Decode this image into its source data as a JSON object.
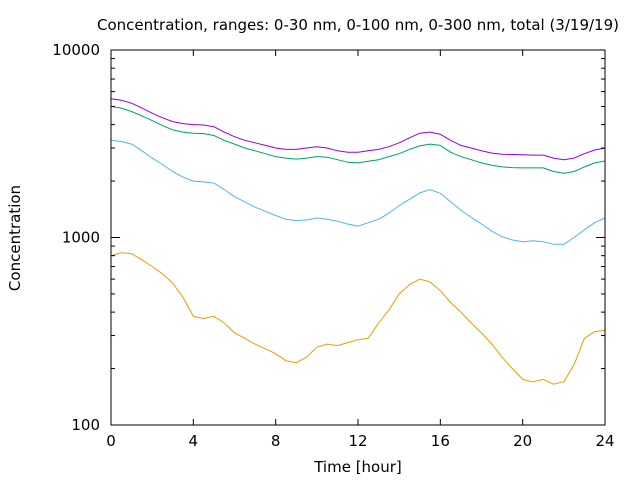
{
  "chart_data": {
    "type": "line",
    "title": "Concentration, ranges: 0-30 nm, 0-100 nm, 0-300 nm, total (3/19/19)",
    "xlabel": "Time [hour]",
    "ylabel": "Concentration",
    "xlim": [
      0,
      24
    ],
    "ylim": [
      100,
      10000
    ],
    "yscale": "log",
    "xticks": [
      "0",
      "4",
      "8",
      "12",
      "16",
      "20",
      "24"
    ],
    "xtick_values": [
      0,
      4,
      8,
      12,
      16,
      20,
      24
    ],
    "yticks": [
      "100",
      "1000",
      "10000"
    ],
    "ytick_values": [
      100,
      1000,
      10000
    ],
    "grid": false,
    "legend": "none",
    "series": [
      {
        "color": "#e69f00",
        "x": [
          0,
          0.5,
          1,
          1.5,
          2,
          2.5,
          3,
          3.5,
          4,
          4.5,
          5,
          5.5,
          6,
          6.5,
          7,
          7.5,
          8,
          8.5,
          9,
          9.5,
          10,
          10.5,
          11,
          11.5,
          12,
          12.5,
          13,
          13.5,
          14,
          14.5,
          15,
          15.5,
          16,
          16.5,
          17,
          17.5,
          18,
          18.5,
          19,
          19.5,
          20,
          20.5,
          21,
          21.5,
          22,
          22.5,
          23,
          23.5,
          24
        ],
        "y": [
          800,
          830,
          820,
          760,
          700,
          640,
          570,
          480,
          380,
          370,
          380,
          350,
          310,
          290,
          270,
          255,
          240,
          220,
          215,
          230,
          260,
          270,
          265,
          275,
          285,
          290,
          350,
          410,
          500,
          560,
          600,
          580,
          520,
          450,
          400,
          350,
          310,
          270,
          230,
          200,
          175,
          170,
          175,
          165,
          170,
          210,
          290,
          315,
          320
        ]
      },
      {
        "color": "#56b4e9",
        "x": [
          0,
          0.5,
          1,
          1.5,
          2,
          2.5,
          3,
          3.5,
          4,
          4.5,
          5,
          5.5,
          6,
          6.5,
          7,
          7.5,
          8,
          8.5,
          9,
          9.5,
          10,
          10.5,
          11,
          11.5,
          12,
          12.5,
          13,
          13.5,
          14,
          14.5,
          15,
          15.5,
          16,
          16.5,
          17,
          17.5,
          18,
          18.5,
          19,
          19.5,
          20,
          20.5,
          21,
          21.5,
          22,
          22.5,
          23,
          23.5,
          24
        ],
        "y": [
          3300,
          3250,
          3150,
          2900,
          2650,
          2450,
          2250,
          2100,
          2000,
          1980,
          1950,
          1800,
          1650,
          1550,
          1450,
          1380,
          1310,
          1250,
          1230,
          1240,
          1270,
          1250,
          1220,
          1180,
          1150,
          1200,
          1250,
          1350,
          1480,
          1600,
          1730,
          1800,
          1720,
          1550,
          1400,
          1280,
          1180,
          1080,
          1010,
          970,
          950,
          960,
          950,
          920,
          920,
          1000,
          1100,
          1200,
          1270
        ]
      },
      {
        "color": "#009e73",
        "x": [
          0,
          0.5,
          1,
          1.5,
          2,
          2.5,
          3,
          3.5,
          4,
          4.5,
          5,
          5.5,
          6,
          6.5,
          7,
          7.5,
          8,
          8.5,
          9,
          9.5,
          10,
          10.5,
          11,
          11.5,
          12,
          12.5,
          13,
          13.5,
          14,
          14.5,
          15,
          15.5,
          16,
          16.5,
          17,
          17.5,
          18,
          18.5,
          19,
          19.5,
          20,
          20.5,
          21,
          21.5,
          22,
          22.5,
          23,
          23.5,
          24
        ],
        "y": [
          5000,
          4900,
          4700,
          4450,
          4200,
          3950,
          3750,
          3650,
          3600,
          3580,
          3500,
          3300,
          3150,
          3000,
          2900,
          2800,
          2700,
          2650,
          2620,
          2650,
          2700,
          2680,
          2600,
          2520,
          2500,
          2550,
          2600,
          2700,
          2800,
          2950,
          3080,
          3150,
          3100,
          2850,
          2700,
          2600,
          2500,
          2430,
          2380,
          2360,
          2350,
          2350,
          2350,
          2250,
          2200,
          2250,
          2380,
          2500,
          2560
        ]
      },
      {
        "color": "#9400d3",
        "x": [
          0,
          0.5,
          1,
          1.5,
          2,
          2.5,
          3,
          3.5,
          4,
          4.5,
          5,
          5.5,
          6,
          6.5,
          7,
          7.5,
          8,
          8.5,
          9,
          9.5,
          10,
          10.5,
          11,
          11.5,
          12,
          12.5,
          13,
          13.5,
          14,
          14.5,
          15,
          15.5,
          16,
          16.5,
          17,
          17.5,
          18,
          18.5,
          19,
          19.5,
          20,
          20.5,
          21,
          21.5,
          22,
          22.5,
          23,
          23.5,
          24
        ],
        "y": [
          5500,
          5400,
          5200,
          4900,
          4600,
          4350,
          4150,
          4050,
          4000,
          3980,
          3900,
          3650,
          3450,
          3300,
          3200,
          3100,
          3000,
          2950,
          2950,
          3000,
          3050,
          3000,
          2900,
          2850,
          2850,
          2900,
          2950,
          3050,
          3200,
          3400,
          3600,
          3650,
          3550,
          3300,
          3100,
          3000,
          2900,
          2820,
          2780,
          2770,
          2760,
          2750,
          2750,
          2650,
          2600,
          2650,
          2800,
          2930,
          3000
        ]
      }
    ]
  }
}
